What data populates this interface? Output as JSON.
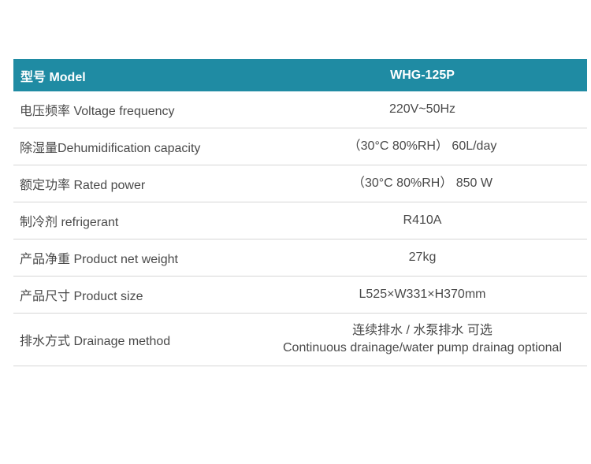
{
  "colors": {
    "header_bg": "#1f8ba3",
    "header_text": "#ffffff",
    "row_divider": "#d6d6d6"
  },
  "table": {
    "header": {
      "label": "型号 Model",
      "value": "WHG-125P"
    },
    "rows": [
      {
        "label": "电压频率 Voltage frequency",
        "value": [
          "220V~50Hz"
        ]
      },
      {
        "label": "除湿量Dehumidification capacity",
        "value": [
          "（30°C 80%RH） 60L/day"
        ]
      },
      {
        "label": "额定功率 Rated power",
        "value": [
          "（30°C 80%RH） 850 W"
        ]
      },
      {
        "label": "制冷剂 refrigerant",
        "value": [
          "R410A"
        ]
      },
      {
        "label": "产品净重 Product net weight",
        "value": [
          "27kg"
        ]
      },
      {
        "label": "产品尺寸 Product size",
        "value": [
          "L525×W331×H370mm"
        ]
      },
      {
        "label": "排水方式 Drainage method",
        "value": [
          "连续排水 / 水泵排水 可选",
          "Continuous drainage/water pump drainag optional"
        ]
      }
    ]
  }
}
